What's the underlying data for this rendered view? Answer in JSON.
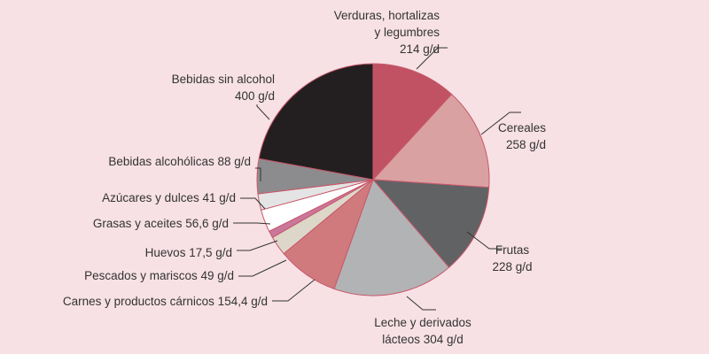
{
  "chart_data": {
    "type": "pie",
    "start": "top",
    "direction": "clockwise",
    "slices": [
      {
        "label": [
          "Verduras, hortalizas",
          "y legumbres",
          "214 g/d"
        ],
        "value": 214,
        "color": "#c05263"
      },
      {
        "label": [
          "Cereales",
          "258 g/d"
        ],
        "value": 258,
        "color": "#d9a1a2"
      },
      {
        "label": [
          "Frutas",
          "228 g/d"
        ],
        "value": 228,
        "color": "#616264"
      },
      {
        "label": [
          "Leche y derivados",
          "lácteos 304 g/d"
        ],
        "value": 304,
        "color": "#b2b3b5"
      },
      {
        "label": [
          "Carnes y productos cárnicos 154,4 g/d"
        ],
        "value": 154.4,
        "color": "#d07a7d"
      },
      {
        "label": [
          "Pescados y mariscos 49 g/d"
        ],
        "value": 49,
        "color": "#dcd7c8"
      },
      {
        "label": [
          "Huevos 17,5 g/d"
        ],
        "value": 17.5,
        "color": "#c9779a"
      },
      {
        "label": [
          "Grasas y aceites 56,6 g/d"
        ],
        "value": 56.6,
        "color": "#ffffff"
      },
      {
        "label": [
          "Azúcares y dulces 41 g/d"
        ],
        "value": 41,
        "color": "#e4e4e4"
      },
      {
        "label": [
          "Bebidas alcohólicas 88 g/d"
        ],
        "value": 88,
        "color": "#8c8c8f"
      },
      {
        "label": [
          "Bebidas sin alcohol",
          "400 g/d"
        ],
        "value": 400,
        "color": "#231f20"
      }
    ]
  }
}
